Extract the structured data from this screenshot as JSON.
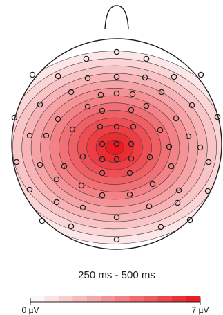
{
  "chart_data": {
    "type": "heatmap",
    "time_window": "250 ms - 500 ms",
    "colorbar": {
      "min_label": "0 µV",
      "max_label": "7 µV",
      "min": 0,
      "max": 7,
      "color_low": "#ffffff",
      "color_high": "#e8141b",
      "steps": 12
    },
    "peak_value": 7,
    "contour_levels": [
      0.5,
      1,
      1.5,
      2,
      2.5,
      3,
      3.5,
      4,
      4.5,
      5,
      5.5,
      6,
      6.5
    ],
    "outline_color": "#1f1f1f",
    "electrode_marker": "circle"
  }
}
